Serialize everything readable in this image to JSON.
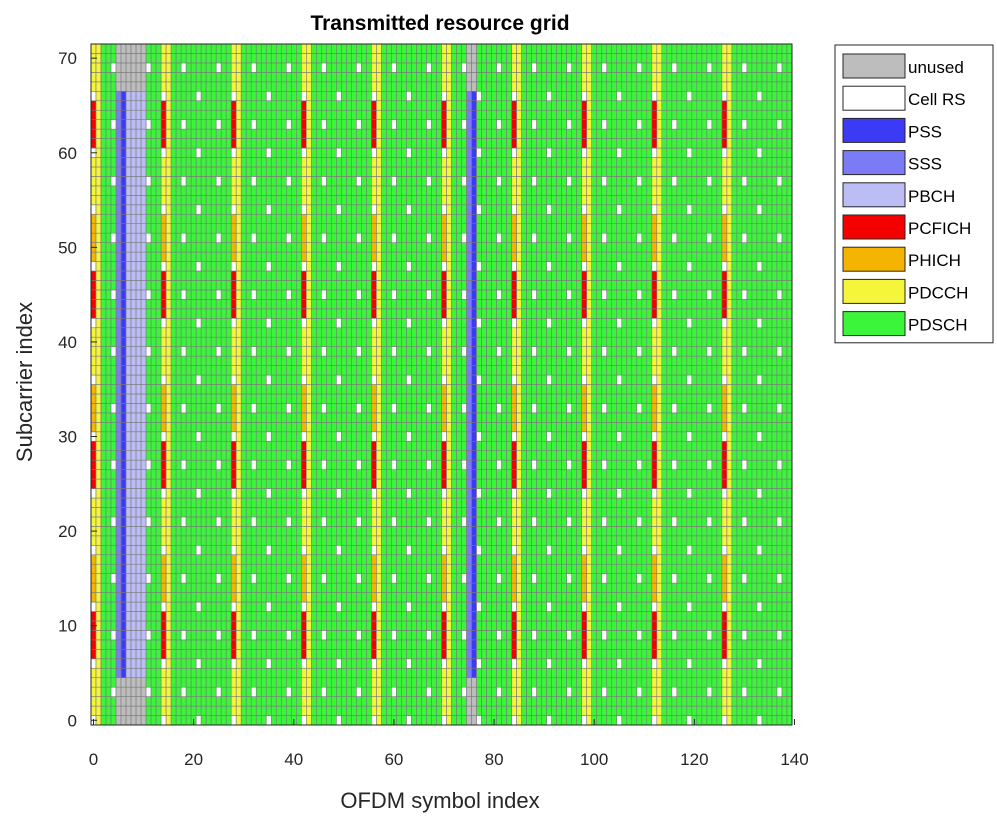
{
  "chart_data": {
    "type": "heatmap",
    "title": "Transmitted resource grid",
    "xlabel": "OFDM symbol index",
    "ylabel": "Subcarrier index",
    "xlim": [
      -0.5,
      139.5
    ],
    "ylim": [
      -0.5,
      71.5
    ],
    "xticks": [
      0,
      20,
      40,
      60,
      80,
      100,
      120,
      140
    ],
    "yticks": [
      0,
      10,
      20,
      30,
      40,
      50,
      60,
      70
    ],
    "n_symbols": 140,
    "n_subcarriers": 72,
    "grid_lines": true,
    "grid_line_color": "#7a7a7a",
    "legend_position": "outside-right",
    "legend": [
      {
        "key": "unused",
        "label": "unused",
        "color": "#bdbdbd"
      },
      {
        "key": "cellrs",
        "label": "Cell RS",
        "color": "#ffffff"
      },
      {
        "key": "pss",
        "label": "PSS",
        "color": "#3b3bf5"
      },
      {
        "key": "sss",
        "label": "SSS",
        "color": "#7b7bf5"
      },
      {
        "key": "pbch",
        "label": "PBCH",
        "color": "#bdbdf5"
      },
      {
        "key": "pcfich",
        "label": "PCFICH",
        "color": "#f50000"
      },
      {
        "key": "phich",
        "label": "PHICH",
        "color": "#f5b400"
      },
      {
        "key": "pdcch",
        "label": "PDCCH",
        "color": "#f5f53b"
      },
      {
        "key": "pdsch",
        "label": "PDSCH",
        "color": "#3bf53b"
      }
    ],
    "structure": {
      "subframe_length_symbols": 14,
      "control_region_symbols": [
        0,
        1
      ],
      "pss_symbols": [
        6,
        76
      ],
      "sss_symbols": [
        5,
        75
      ],
      "pbch_symbols": [
        7,
        8,
        9,
        10
      ],
      "sync_subcarriers": [
        5,
        66
      ],
      "guard_subcarriers": [
        [
          0,
          4
        ],
        [
          67,
          71
        ]
      ],
      "cell_rs_symbols_in_subframe": [
        0,
        4,
        7,
        11
      ],
      "cell_rs_subcarrier_spacing": 6,
      "pcfich_subcarrier_groups": [
        [
          6,
          11
        ],
        [
          24,
          29
        ],
        [
          42,
          47
        ],
        [
          60,
          65
        ]
      ],
      "phich_subcarrier_groups": [
        [
          12,
          17
        ],
        [
          30,
          35
        ],
        [
          48,
          53
        ]
      ],
      "pdsch_dominant": true
    }
  }
}
